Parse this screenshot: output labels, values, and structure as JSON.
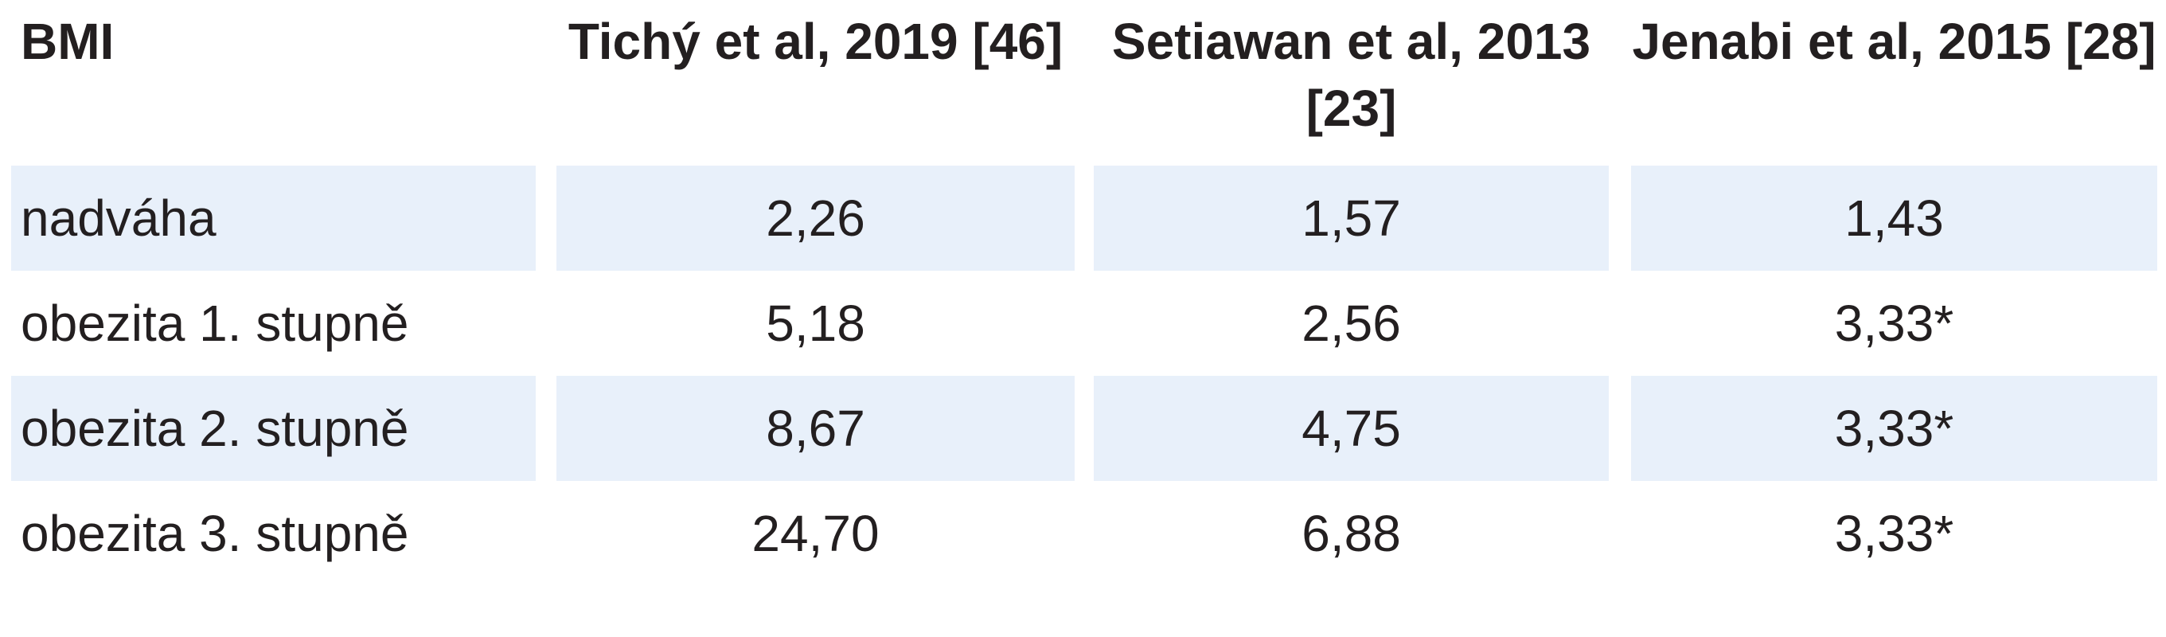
{
  "table": {
    "header": [
      "BMI",
      "Tichý et al, 2019 [46]",
      "Setiawan et al, 2013 [23]",
      "Jenabi et al, 2015 [28]"
    ],
    "rows": [
      [
        "nadváha",
        "2,26",
        "1,57",
        "1,43"
      ],
      [
        "obezita 1. stupně",
        "5,18",
        "2,56",
        "3,33*"
      ],
      [
        "obezita 2. stupně",
        "8,67",
        "4,75",
        "3,33*"
      ],
      [
        "obezita 3. stupně",
        "24,70",
        "6,88",
        "3,33*"
      ]
    ]
  }
}
